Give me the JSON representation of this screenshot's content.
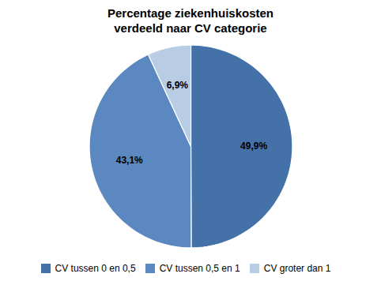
{
  "chart_data": {
    "type": "pie",
    "title": "Percentage ziekenhuiskosten\nverdeeld naar CV categorie",
    "categories": [
      "CV tussen 0 en 0,5",
      "CV tussen 0,5 en 1",
      "CV groter dan 1"
    ],
    "values": [
      49.9,
      43.1,
      6.9
    ],
    "value_labels": [
      "49,9%",
      "43,1%",
      "6,9%"
    ],
    "colors": [
      "#4472A8",
      "#5B88C0",
      "#B8CCE4"
    ],
    "data_labels": true,
    "legend": "bottom"
  }
}
